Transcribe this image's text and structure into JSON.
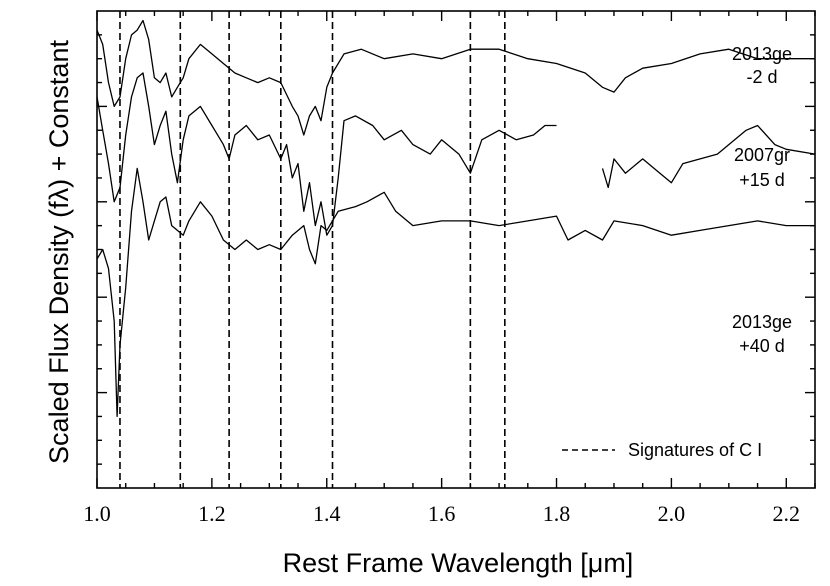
{
  "chart_data": {
    "type": "line",
    "title": "",
    "xlabel": "Rest Frame Wavelength [μm]",
    "ylabel": "Scaled Flux Density (fλ) + Constant",
    "xlim": [
      1.0,
      2.25
    ],
    "ylim": [
      0,
      10
    ],
    "x_ticks": [
      1.0,
      1.2,
      1.4,
      1.6,
      1.8,
      2.0,
      2.2
    ],
    "x_tick_labels": [
      "1.0",
      "1.2",
      "1.4",
      "1.6",
      "1.8",
      "2.0",
      "2.2"
    ],
    "y_tick_labels_shown": false,
    "grid": false,
    "reference_lines": {
      "label": "Signatures of C I",
      "style": "dashed",
      "x": [
        1.04,
        1.145,
        1.23,
        1.32,
        1.41,
        1.65,
        1.71
      ]
    },
    "series": [
      {
        "annotation": [
          "2013ge",
          "-2 d"
        ],
        "x": [
          1.0,
          1.01,
          1.02,
          1.03,
          1.04,
          1.05,
          1.06,
          1.07,
          1.08,
          1.09,
          1.1,
          1.11,
          1.12,
          1.13,
          1.14,
          1.15,
          1.16,
          1.18,
          1.2,
          1.22,
          1.24,
          1.26,
          1.28,
          1.3,
          1.32,
          1.34,
          1.35,
          1.36,
          1.37,
          1.38,
          1.39,
          1.4,
          1.41,
          1.43,
          1.46,
          1.5,
          1.55,
          1.6,
          1.65,
          1.7,
          1.75,
          1.8,
          1.85,
          1.88,
          1.9,
          1.92,
          1.95,
          2.0,
          2.05,
          2.1,
          2.15,
          2.2,
          2.25
        ],
        "y": [
          9.6,
          9.3,
          8.5,
          8.0,
          8.2,
          9.0,
          9.5,
          9.6,
          9.8,
          9.4,
          8.6,
          8.5,
          8.7,
          8.2,
          8.4,
          8.6,
          9.0,
          9.3,
          9.1,
          8.9,
          8.7,
          8.6,
          8.5,
          8.6,
          8.5,
          8.0,
          7.8,
          7.4,
          7.8,
          8.0,
          7.7,
          8.4,
          8.7,
          9.1,
          9.2,
          9.0,
          9.1,
          9.0,
          9.2,
          9.2,
          9.0,
          8.9,
          8.7,
          8.4,
          8.3,
          8.6,
          8.8,
          8.9,
          9.1,
          9.2,
          9.0,
          9.0,
          9.0
        ]
      },
      {
        "annotation": [
          "2007gr",
          "+15 d"
        ],
        "x": [
          1.0,
          1.01,
          1.02,
          1.03,
          1.04,
          1.05,
          1.06,
          1.07,
          1.08,
          1.09,
          1.1,
          1.11,
          1.12,
          1.13,
          1.14,
          1.15,
          1.16,
          1.18,
          1.2,
          1.22,
          1.23,
          1.24,
          1.26,
          1.28,
          1.3,
          1.32,
          1.33,
          1.34,
          1.35,
          1.36,
          1.37,
          1.38,
          1.39,
          1.4,
          1.41,
          1.42,
          1.43,
          1.45,
          1.48,
          1.5,
          1.53,
          1.55,
          1.58,
          1.6,
          1.63,
          1.65,
          1.67,
          1.7,
          1.73,
          1.76,
          1.78,
          1.8,
          null,
          1.88,
          1.89,
          1.9,
          1.92,
          1.95,
          1.98,
          2.0,
          2.02,
          2.05,
          2.08,
          2.1,
          2.13,
          2.15,
          2.18,
          2.2,
          2.25
        ],
        "y": [
          8.2,
          7.5,
          6.8,
          6.0,
          6.3,
          7.4,
          8.2,
          8.6,
          8.7,
          8.0,
          7.2,
          7.6,
          7.9,
          7.0,
          6.4,
          7.3,
          7.8,
          8.0,
          7.6,
          7.2,
          6.9,
          7.4,
          7.6,
          7.3,
          7.4,
          6.9,
          7.2,
          6.5,
          6.8,
          5.8,
          6.4,
          5.5,
          6.0,
          5.3,
          5.5,
          6.5,
          7.7,
          7.8,
          7.6,
          7.3,
          7.5,
          7.2,
          7.0,
          7.3,
          7.0,
          6.6,
          7.3,
          7.5,
          7.3,
          7.4,
          7.6,
          7.6,
          null,
          6.7,
          6.3,
          6.9,
          6.6,
          6.9,
          6.6,
          6.4,
          6.8,
          6.9,
          7.0,
          7.2,
          7.5,
          7.6,
          7.2,
          7.1,
          7.0
        ]
      },
      {
        "annotation": [
          "2013ge",
          "+40 d"
        ],
        "x": [
          1.0,
          1.01,
          1.02,
          1.03,
          1.035,
          1.04,
          1.05,
          1.06,
          1.07,
          1.08,
          1.09,
          1.1,
          1.11,
          1.12,
          1.13,
          1.14,
          1.15,
          1.16,
          1.18,
          1.2,
          1.22,
          1.24,
          1.26,
          1.28,
          1.3,
          1.32,
          1.34,
          1.36,
          1.37,
          1.38,
          1.39,
          1.4,
          1.42,
          1.45,
          1.47,
          1.5,
          1.52,
          1.55,
          1.6,
          1.65,
          1.7,
          1.75,
          1.8,
          1.82,
          1.85,
          1.88,
          1.9,
          1.95,
          2.0,
          2.05,
          2.1,
          2.15,
          2.2,
          2.25
        ],
        "y": [
          4.8,
          5.0,
          4.6,
          3.5,
          1.5,
          3.0,
          4.2,
          5.8,
          6.7,
          6.0,
          5.2,
          5.6,
          6.0,
          6.1,
          5.5,
          5.4,
          5.3,
          5.6,
          6.0,
          5.7,
          5.2,
          5.0,
          5.2,
          5.0,
          5.1,
          5.0,
          5.3,
          5.5,
          5.0,
          4.7,
          5.5,
          5.4,
          5.8,
          5.9,
          6.0,
          6.2,
          5.8,
          5.5,
          5.6,
          5.6,
          5.5,
          5.6,
          5.7,
          5.2,
          5.4,
          5.2,
          5.6,
          5.5,
          5.3,
          5.4,
          5.5,
          5.6,
          5.5,
          5.5
        ]
      }
    ]
  }
}
